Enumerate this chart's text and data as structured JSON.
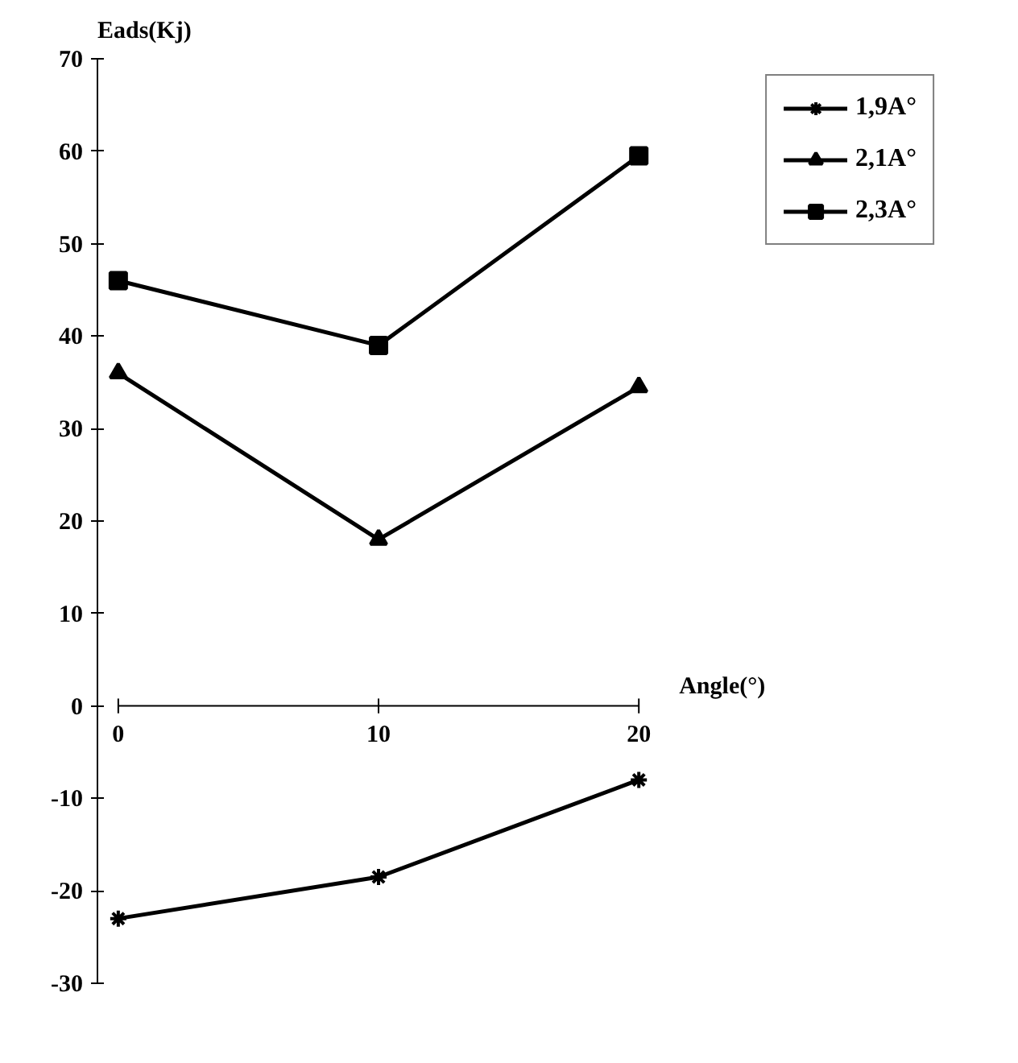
{
  "chart_data": {
    "type": "line",
    "xlabel": "Angle(°)",
    "ylabel": "Eads(Kj)",
    "x": [
      0,
      10,
      20
    ],
    "series": [
      {
        "name": "1,9A°",
        "color": "#000000",
        "marker": "cross",
        "values": [
          -23,
          -18.5,
          -8
        ]
      },
      {
        "name": "2,1A°",
        "color": "#000000",
        "marker": "triangle",
        "values": [
          36,
          18,
          34.5
        ]
      },
      {
        "name": "2,3A°",
        "color": "#000000",
        "marker": "square",
        "values": [
          46,
          39,
          59.5
        ]
      }
    ],
    "xlim": [
      0,
      20
    ],
    "ylim": [
      -30,
      70
    ],
    "xticks": [
      0,
      10,
      20
    ],
    "yticks": [
      -30,
      -20,
      -10,
      0,
      10,
      20,
      30,
      40,
      50,
      60,
      70
    ],
    "grid": false,
    "legend": "top right",
    "line_style": "solid"
  }
}
